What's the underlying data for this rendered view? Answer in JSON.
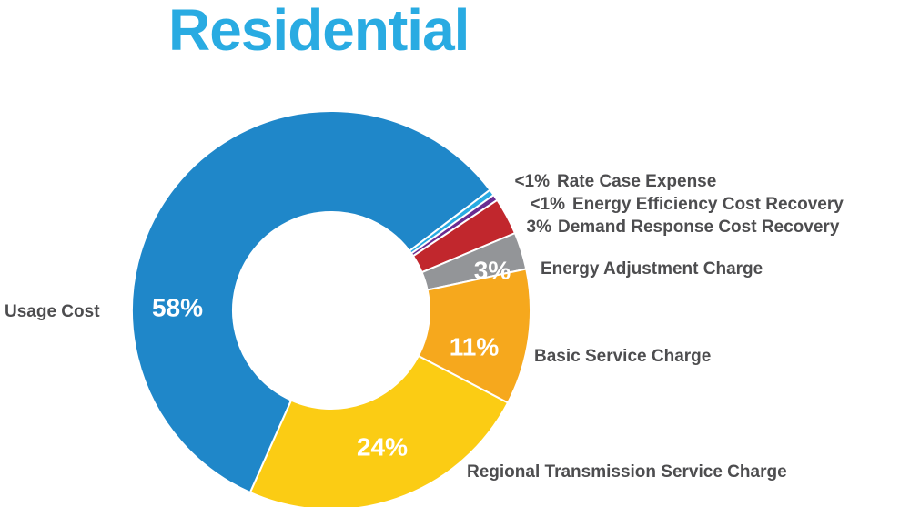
{
  "chart_data": {
    "type": "donut",
    "title": "Residential",
    "title_color": "#29abe2",
    "categories": [
      "Usage Cost",
      "Rate Case Expense",
      "Energy Efficiency Cost Recovery",
      "Demand Response Cost Recovery",
      "Energy Adjustment Charge",
      "Basic Service Charge",
      "Regional Transmission Service Charge"
    ],
    "values": [
      58,
      0.5,
      0.5,
      3,
      3,
      11,
      24
    ],
    "value_labels": [
      "58%",
      "<1%",
      "<1%",
      "3%",
      "3%",
      "11%",
      "24%"
    ],
    "colors": [
      "#1f87c9",
      "#29abe2",
      "#6a2c91",
      "#c1272d",
      "#939598",
      "#f6a81d",
      "#fbcc14"
    ]
  }
}
